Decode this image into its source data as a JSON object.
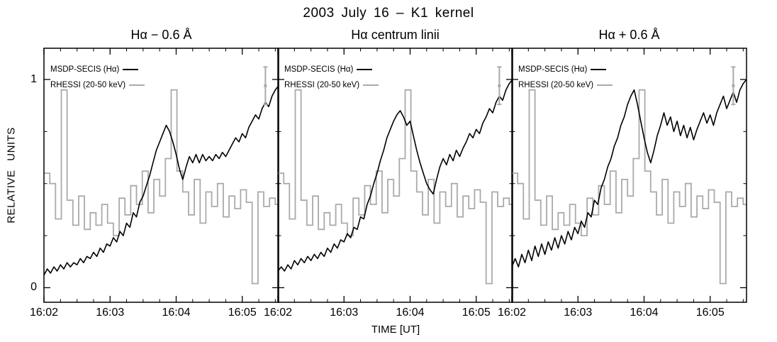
{
  "chart_data": {
    "type": "line",
    "title": "2003 July 16 – K1 kernel",
    "xlabel": "TIME [UT]",
    "ylabel": "RELATIVE UNITS",
    "xlim": [
      2.0,
      5.55
    ],
    "ylim": [
      -0.07,
      1.15
    ],
    "x_tick_values": [
      2,
      3,
      4,
      5
    ],
    "x_tick_labels": [
      "16:02",
      "16:03",
      "16:04",
      "16:05"
    ],
    "x_minor_step": 0.25,
    "y_tick_values": [
      0,
      1
    ],
    "y_tick_labels": [
      "0",
      "1"
    ],
    "y_minor_values": [
      0.25,
      0.5,
      0.75
    ],
    "grid": false,
    "legend_position": "top-left",
    "colors": {
      "msdp": "#000000",
      "rhessi": "#aaaaaa"
    },
    "legend": [
      {
        "label": "MSDP-SECIS (Hα)",
        "series": "msdp"
      },
      {
        "label": "RHESSI (20-50 keV)",
        "series": "rhessi"
      }
    ],
    "error_bar": {
      "x": 5.35,
      "y": 0.97,
      "half": 0.09
    },
    "msdp_x_start": 2.0,
    "msdp_x_step": 0.05,
    "panels": [
      {
        "title": "Hα − 0.6 Å",
        "msdp_y": [
          0.06,
          0.09,
          0.07,
          0.1,
          0.08,
          0.11,
          0.09,
          0.12,
          0.1,
          0.12,
          0.11,
          0.14,
          0.12,
          0.15,
          0.14,
          0.17,
          0.15,
          0.19,
          0.17,
          0.21,
          0.2,
          0.24,
          0.22,
          0.27,
          0.25,
          0.31,
          0.29,
          0.36,
          0.34,
          0.41,
          0.44,
          0.49,
          0.54,
          0.6,
          0.66,
          0.7,
          0.74,
          0.78,
          0.75,
          0.7,
          0.64,
          0.57,
          0.52,
          0.58,
          0.63,
          0.6,
          0.64,
          0.6,
          0.64,
          0.61,
          0.63,
          0.61,
          0.64,
          0.62,
          0.65,
          0.63,
          0.66,
          0.69,
          0.72,
          0.7,
          0.74,
          0.72,
          0.77,
          0.8,
          0.83,
          0.81,
          0.86,
          0.89,
          0.87,
          0.92,
          0.95,
          0.97
        ]
      },
      {
        "title": "Hα centrum linii",
        "msdp_y": [
          0.08,
          0.1,
          0.08,
          0.11,
          0.09,
          0.13,
          0.11,
          0.14,
          0.12,
          0.15,
          0.13,
          0.16,
          0.14,
          0.17,
          0.15,
          0.19,
          0.17,
          0.21,
          0.19,
          0.23,
          0.22,
          0.26,
          0.24,
          0.29,
          0.28,
          0.34,
          0.33,
          0.4,
          0.44,
          0.5,
          0.55,
          0.61,
          0.66,
          0.72,
          0.76,
          0.8,
          0.83,
          0.85,
          0.82,
          0.78,
          0.8,
          0.73,
          0.66,
          0.6,
          0.55,
          0.5,
          0.47,
          0.45,
          0.52,
          0.58,
          0.62,
          0.59,
          0.64,
          0.61,
          0.66,
          0.63,
          0.67,
          0.7,
          0.74,
          0.72,
          0.76,
          0.74,
          0.79,
          0.82,
          0.86,
          0.84,
          0.89,
          0.92,
          0.9,
          0.95,
          0.98,
          1.0
        ]
      },
      {
        "title": "Hα + 0.6 Å",
        "msdp_y": [
          0.1,
          0.14,
          0.1,
          0.16,
          0.12,
          0.18,
          0.13,
          0.2,
          0.15,
          0.21,
          0.16,
          0.22,
          0.18,
          0.24,
          0.19,
          0.25,
          0.21,
          0.27,
          0.23,
          0.29,
          0.26,
          0.32,
          0.29,
          0.36,
          0.34,
          0.42,
          0.4,
          0.48,
          0.52,
          0.58,
          0.62,
          0.68,
          0.72,
          0.78,
          0.82,
          0.88,
          0.92,
          0.95,
          0.88,
          0.8,
          0.72,
          0.65,
          0.6,
          0.66,
          0.73,
          0.78,
          0.84,
          0.78,
          0.82,
          0.75,
          0.8,
          0.73,
          0.78,
          0.72,
          0.77,
          0.71,
          0.76,
          0.8,
          0.84,
          0.79,
          0.83,
          0.78,
          0.84,
          0.88,
          0.92,
          0.86,
          0.9,
          0.94,
          0.89,
          0.95,
          0.98,
          1.0
        ]
      }
    ],
    "rhessi": {
      "x_start": 2.0,
      "bin_width": 0.0875,
      "values": [
        0.55,
        0.5,
        0.33,
        0.95,
        0.42,
        0.3,
        0.44,
        0.28,
        0.36,
        0.3,
        0.4,
        0.31,
        0.25,
        0.43,
        0.35,
        0.49,
        0.4,
        0.56,
        0.36,
        0.52,
        0.44,
        0.62,
        0.95,
        0.56,
        0.46,
        0.35,
        0.52,
        0.31,
        0.46,
        0.39,
        0.5,
        0.34,
        0.44,
        0.38,
        0.47,
        0.41,
        0.02,
        0.46,
        0.39,
        0.43,
        0.4
      ]
    }
  }
}
